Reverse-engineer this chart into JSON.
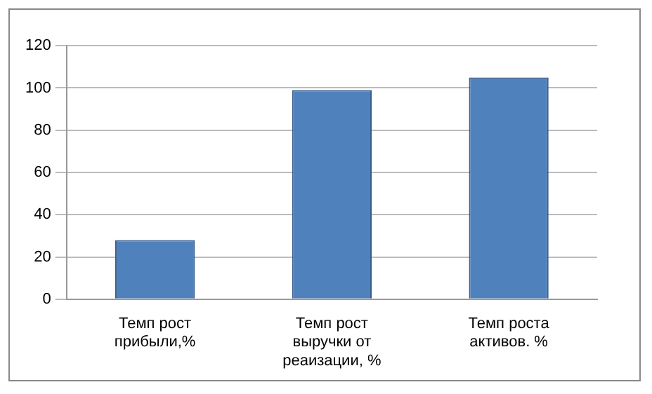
{
  "chart_data": {
    "type": "bar",
    "categories": [
      "Темп рост прибыли,%",
      "Темп рост выручки от реаизации, %",
      "Темп роста активов. %"
    ],
    "values": [
      28,
      99,
      105
    ],
    "color": "#4f81bd",
    "ylim": [
      0,
      120
    ],
    "yticks": [
      0,
      20,
      40,
      60,
      80,
      100,
      120
    ],
    "grid": "y"
  }
}
